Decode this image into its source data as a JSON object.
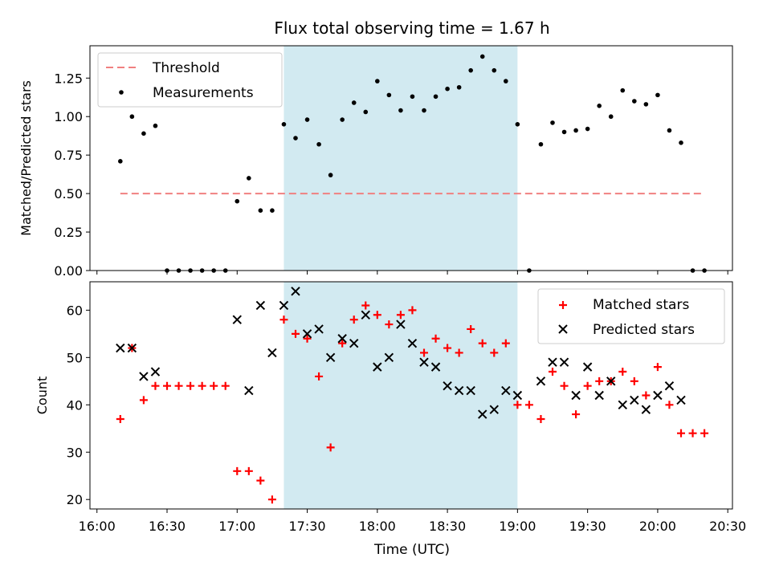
{
  "figure": {
    "title": "Flux total observing time = 1.67 h",
    "xlabel": "Time (UTC)",
    "highlight_color": "#add8e6",
    "highlight_span": [
      "17:20",
      "19:00"
    ]
  },
  "chart_data": [
    {
      "type": "scatter",
      "ylabel": "Matched/Predicted stars",
      "ylim": [
        0,
        1.46
      ],
      "yticks": [
        0.0,
        0.25,
        0.5,
        0.75,
        1.0,
        1.25
      ],
      "ytick_labels": [
        "0.00",
        "0.25",
        "0.50",
        "0.75",
        "1.00",
        "1.25"
      ],
      "legend": {
        "placement": "top-left",
        "entries": [
          "Threshold",
          "Measurements"
        ]
      },
      "threshold": {
        "name": "Threshold",
        "value": 0.5,
        "x_range": [
          "16:10",
          "20:20"
        ],
        "color": "#f08080",
        "style": "dashed"
      },
      "series": [
        {
          "name": "Measurements",
          "color": "#000000",
          "marker": "dot",
          "x": [
            "16:10",
            "16:15",
            "16:20",
            "16:25",
            "16:30",
            "16:35",
            "16:40",
            "16:45",
            "16:50",
            "16:55",
            "17:00",
            "17:05",
            "17:10",
            "17:15",
            "17:20",
            "17:25",
            "17:30",
            "17:35",
            "17:40",
            "17:45",
            "17:50",
            "17:55",
            "18:00",
            "18:05",
            "18:10",
            "18:15",
            "18:20",
            "18:25",
            "18:30",
            "18:35",
            "18:40",
            "18:45",
            "18:50",
            "18:55",
            "19:00",
            "19:05",
            "19:10",
            "19:15",
            "19:20",
            "19:25",
            "19:30",
            "19:35",
            "19:40",
            "19:45",
            "19:50",
            "19:55",
            "20:00",
            "20:05",
            "20:10",
            "20:15",
            "20:20"
          ],
          "y": [
            0.71,
            1.0,
            0.89,
            0.94,
            0.0,
            0.0,
            0.0,
            0.0,
            0.0,
            0.0,
            0.45,
            0.6,
            0.39,
            0.39,
            0.95,
            0.86,
            0.98,
            0.82,
            0.62,
            0.98,
            1.09,
            1.03,
            1.23,
            1.14,
            1.04,
            1.13,
            1.04,
            1.13,
            1.18,
            1.19,
            1.3,
            1.39,
            1.3,
            1.23,
            0.95,
            0.0,
            0.82,
            0.96,
            0.9,
            0.91,
            0.92,
            1.07,
            1.0,
            1.17,
            1.1,
            1.08,
            1.14,
            0.91,
            0.83,
            0.0,
            0.0
          ]
        }
      ]
    },
    {
      "type": "scatter",
      "ylabel": "Count",
      "ylim": [
        18,
        66
      ],
      "yticks": [
        20,
        30,
        40,
        50,
        60
      ],
      "ytick_labels": [
        "20",
        "30",
        "40",
        "50",
        "60"
      ],
      "xticks": [
        "16:00",
        "16:30",
        "17:00",
        "17:30",
        "18:00",
        "18:30",
        "19:00",
        "19:30",
        "20:00",
        "20:30"
      ],
      "legend": {
        "placement": "top-right",
        "entries": [
          "Matched stars",
          "Predicted stars"
        ]
      },
      "series": [
        {
          "name": "Matched stars",
          "color": "#ff0000",
          "marker": "plus",
          "x": [
            "16:10",
            "16:15",
            "16:20",
            "16:25",
            "16:30",
            "16:35",
            "16:40",
            "16:45",
            "16:50",
            "16:55",
            "17:00",
            "17:05",
            "17:10",
            "17:15",
            "17:20",
            "17:25",
            "17:30",
            "17:35",
            "17:40",
            "17:45",
            "17:50",
            "17:55",
            "18:00",
            "18:05",
            "18:10",
            "18:15",
            "18:20",
            "18:25",
            "18:30",
            "18:35",
            "18:40",
            "18:45",
            "18:50",
            "18:55",
            "19:00",
            "19:05",
            "19:10",
            "19:15",
            "19:20",
            "19:25",
            "19:30",
            "19:35",
            "19:40",
            "19:45",
            "19:50",
            "19:55",
            "20:00",
            "20:05",
            "20:10",
            "20:15",
            "20:20"
          ],
          "y": [
            37,
            52,
            41,
            44,
            44,
            44,
            44,
            44,
            44,
            44,
            26,
            26,
            24,
            20,
            58,
            55,
            54,
            46,
            31,
            53,
            58,
            61,
            59,
            57,
            59,
            60,
            51,
            54,
            52,
            51,
            56,
            53,
            51,
            53,
            40,
            40,
            37,
            47,
            44,
            38,
            44,
            45,
            45,
            47,
            45,
            42,
            48,
            40,
            34,
            34,
            34
          ]
        },
        {
          "name": "Predicted stars",
          "color": "#000000",
          "marker": "x",
          "x": [
            "16:10",
            "16:15",
            "16:20",
            "16:25",
            "17:00",
            "17:05",
            "17:10",
            "17:15",
            "17:20",
            "17:25",
            "17:30",
            "17:35",
            "17:40",
            "17:45",
            "17:50",
            "17:55",
            "18:00",
            "18:05",
            "18:10",
            "18:15",
            "18:20",
            "18:25",
            "18:30",
            "18:35",
            "18:40",
            "18:45",
            "18:50",
            "18:55",
            "19:00",
            "19:10",
            "19:15",
            "19:20",
            "19:25",
            "19:30",
            "19:35",
            "19:40",
            "19:45",
            "19:50",
            "19:55",
            "20:00",
            "20:05",
            "20:10"
          ],
          "y": [
            52,
            52,
            46,
            47,
            58,
            43,
            61,
            51,
            61,
            64,
            55,
            56,
            50,
            54,
            53,
            59,
            48,
            50,
            57,
            53,
            49,
            48,
            44,
            43,
            43,
            38,
            39,
            43,
            42,
            45,
            49,
            49,
            42,
            48,
            42,
            45,
            40,
            41,
            39,
            42,
            44,
            41
          ]
        }
      ]
    }
  ]
}
